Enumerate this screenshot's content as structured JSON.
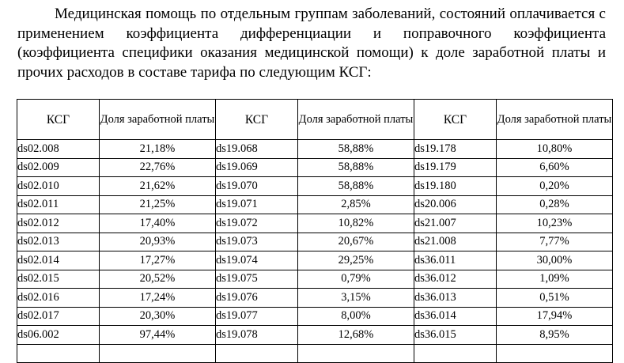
{
  "paragraph": "Медицинская помощь по отдельным группам заболеваний, состояний оплачивается с применением коэффициента дифференциации и поправочного коэффициента (коэффициента специфики оказания медицинской помощи) к доле заработной платы и прочих расходов в составе тарифа по следующим КСГ:",
  "table": {
    "headers": {
      "code": "КСГ",
      "share": "Доля заработной платы"
    },
    "rows": [
      [
        "ds02.008",
        "21,18%",
        "ds19.068",
        "58,88%",
        "ds19.178",
        "10,80%"
      ],
      [
        "ds02.009",
        "22,76%",
        "ds19.069",
        "58,88%",
        "ds19.179",
        "6,60%"
      ],
      [
        "ds02.010",
        "21,62%",
        "ds19.070",
        "58,88%",
        "ds19.180",
        "0,20%"
      ],
      [
        "ds02.011",
        "21,25%",
        "ds19.071",
        "2,85%",
        "ds20.006",
        "0,28%"
      ],
      [
        "ds02.012",
        "17,40%",
        "ds19.072",
        "10,82%",
        "ds21.007",
        "10,23%"
      ],
      [
        "ds02.013",
        "20,93%",
        "ds19.073",
        "20,67%",
        "ds21.008",
        "7,77%"
      ],
      [
        "ds02.014",
        "17,27%",
        "ds19.074",
        "29,25%",
        "ds36.011",
        "30,00%"
      ],
      [
        "ds02.015",
        "20,52%",
        "ds19.075",
        "0,79%",
        "ds36.012",
        "1,09%"
      ],
      [
        "ds02.016",
        "17,24%",
        "ds19.076",
        "3,15%",
        "ds36.013",
        "0,51%"
      ],
      [
        "ds02.017",
        "20,30%",
        "ds19.077",
        "8,00%",
        "ds36.014",
        "17,94%"
      ],
      [
        "ds06.002",
        "97,44%",
        "ds19.078",
        "12,68%",
        "ds36.015",
        "8,95%"
      ],
      [
        "",
        "",
        "",
        "",
        "",
        ""
      ]
    ]
  }
}
